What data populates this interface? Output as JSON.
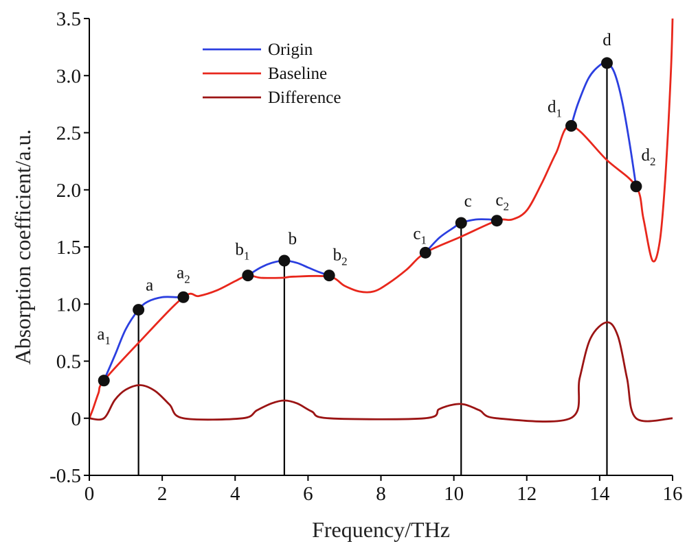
{
  "chart_data": {
    "type": "line",
    "title": "",
    "xlabel": "Frequency/THz",
    "ylabel": "Absorption coefficient/a.u.",
    "xlim": [
      0,
      16
    ],
    "ylim": [
      -0.5,
      3.5
    ],
    "x_ticks": [
      0,
      2,
      4,
      6,
      8,
      10,
      12,
      14,
      16
    ],
    "x_tick_labels": [
      "0",
      "2",
      "4",
      "6",
      "8",
      "10",
      "12",
      "14",
      "16"
    ],
    "y_ticks": [
      -0.5,
      0,
      0.5,
      1.0,
      1.5,
      2.0,
      2.5,
      3.0,
      3.5
    ],
    "y_tick_labels": [
      "-0.5",
      "0",
      "0.5",
      "1.0",
      "1.5",
      "2.0",
      "2.5",
      "3.0",
      "3.5"
    ],
    "grid": false,
    "legend_position": "top-left",
    "series": [
      {
        "name": "Origin",
        "color": "#2b3fe0",
        "segments": [
          [
            [
              0.4,
              0.33
            ],
            [
              0.7,
              0.55
            ],
            [
              1.0,
              0.78
            ],
            [
              1.35,
              0.95
            ],
            [
              1.6,
              1.02
            ],
            [
              2.0,
              1.06
            ],
            [
              2.4,
              1.06
            ],
            [
              2.58,
              1.06
            ]
          ],
          [
            [
              4.35,
              1.25
            ],
            [
              4.7,
              1.32
            ],
            [
              5.0,
              1.36
            ],
            [
              5.35,
              1.38
            ],
            [
              5.7,
              1.36
            ],
            [
              6.0,
              1.32
            ],
            [
              6.3,
              1.28
            ],
            [
              6.58,
              1.25
            ]
          ],
          [
            [
              9.22,
              1.45
            ],
            [
              9.6,
              1.58
            ],
            [
              10.0,
              1.67
            ],
            [
              10.2,
              1.71
            ],
            [
              10.6,
              1.74
            ],
            [
              11.0,
              1.74
            ],
            [
              11.18,
              1.73
            ]
          ],
          [
            [
              13.22,
              2.56
            ],
            [
              13.4,
              2.75
            ],
            [
              13.7,
              2.98
            ],
            [
              14.0,
              3.09
            ],
            [
              14.2,
              3.11
            ],
            [
              14.4,
              3.03
            ],
            [
              14.6,
              2.8
            ],
            [
              14.8,
              2.45
            ],
            [
              15.0,
              2.03
            ]
          ]
        ]
      },
      {
        "name": "Baseline",
        "color": "#e8271c",
        "points": [
          [
            0,
            0
          ],
          [
            0.1,
            0.08
          ],
          [
            0.25,
            0.22
          ],
          [
            0.4,
            0.33
          ],
          [
            1.35,
            0.66
          ],
          [
            2.58,
            1.06
          ],
          [
            3.0,
            1.07
          ],
          [
            3.5,
            1.12
          ],
          [
            4.0,
            1.2
          ],
          [
            4.35,
            1.25
          ],
          [
            4.7,
            1.23
          ],
          [
            5.3,
            1.23
          ],
          [
            5.6,
            1.24
          ],
          [
            6.58,
            1.24
          ],
          [
            7.0,
            1.16
          ],
          [
            7.4,
            1.11
          ],
          [
            7.8,
            1.11
          ],
          [
            8.2,
            1.18
          ],
          [
            8.7,
            1.3
          ],
          [
            9.22,
            1.45
          ],
          [
            10.2,
            1.59
          ],
          [
            11.18,
            1.73
          ],
          [
            11.6,
            1.74
          ],
          [
            12.0,
            1.82
          ],
          [
            12.4,
            2.05
          ],
          [
            12.8,
            2.32
          ],
          [
            13.22,
            2.56
          ],
          [
            14.2,
            2.26
          ],
          [
            15.0,
            2.03
          ],
          [
            15.2,
            1.75
          ],
          [
            15.45,
            1.38
          ],
          [
            15.65,
            1.55
          ],
          [
            15.8,
            2.1
          ],
          [
            15.95,
            3.0
          ],
          [
            16.0,
            3.5
          ]
        ]
      },
      {
        "name": "Difference",
        "color": "#9b1414",
        "points": [
          [
            0,
            0
          ],
          [
            0.4,
            0
          ],
          [
            0.7,
            0.16
          ],
          [
            1.0,
            0.25
          ],
          [
            1.4,
            0.29
          ],
          [
            1.8,
            0.24
          ],
          [
            2.2,
            0.12
          ],
          [
            2.58,
            0
          ],
          [
            4.2,
            0
          ],
          [
            4.6,
            0.07
          ],
          [
            5.0,
            0.13
          ],
          [
            5.35,
            0.155
          ],
          [
            5.7,
            0.13
          ],
          [
            6.1,
            0.06
          ],
          [
            6.58,
            0
          ],
          [
            9.2,
            0
          ],
          [
            9.6,
            0.08
          ],
          [
            10.0,
            0.12
          ],
          [
            10.3,
            0.12
          ],
          [
            10.7,
            0.07
          ],
          [
            11.18,
            0
          ],
          [
            13.2,
            0
          ],
          [
            13.45,
            0.35
          ],
          [
            13.75,
            0.7
          ],
          [
            14.2,
            0.84
          ],
          [
            14.5,
            0.72
          ],
          [
            14.75,
            0.35
          ],
          [
            15.0,
            0
          ],
          [
            16.0,
            0
          ]
        ]
      }
    ],
    "markers": [
      {
        "label": "a",
        "sub": "1",
        "x": 0.4,
        "y": 0.33,
        "dx": 0,
        "dy": -60
      },
      {
        "label": "a",
        "sub": "",
        "x": 1.35,
        "y": 0.95,
        "dx": 16,
        "dy": -28
      },
      {
        "label": "a",
        "sub": "2",
        "x": 2.58,
        "y": 1.06,
        "dx": 0,
        "dy": -28
      },
      {
        "label": "b",
        "sub": "1",
        "x": 4.35,
        "y": 1.25,
        "dx": -8,
        "dy": -30
      },
      {
        "label": "b",
        "sub": "",
        "x": 5.35,
        "y": 1.38,
        "dx": 12,
        "dy": -24
      },
      {
        "label": "b",
        "sub": "2",
        "x": 6.58,
        "y": 1.25,
        "dx": 16,
        "dy": -22
      },
      {
        "label": "c",
        "sub": "1",
        "x": 9.22,
        "y": 1.45,
        "dx": -8,
        "dy": -20
      },
      {
        "label": "c",
        "sub": "",
        "x": 10.2,
        "y": 1.71,
        "dx": 10,
        "dy": -24
      },
      {
        "label": "c",
        "sub": "2",
        "x": 11.18,
        "y": 1.73,
        "dx": 8,
        "dy": -22
      },
      {
        "label": "d",
        "sub": "1",
        "x": 13.22,
        "y": 2.56,
        "dx": -24,
        "dy": -20
      },
      {
        "label": "d",
        "sub": "",
        "x": 14.2,
        "y": 3.11,
        "dx": 0,
        "dy": -26
      },
      {
        "label": "d",
        "sub": "2",
        "x": 15.0,
        "y": 2.03,
        "dx": 18,
        "dy": -38
      }
    ],
    "drop_lines_at_x": [
      1.35,
      5.35,
      10.2,
      14.2
    ]
  }
}
